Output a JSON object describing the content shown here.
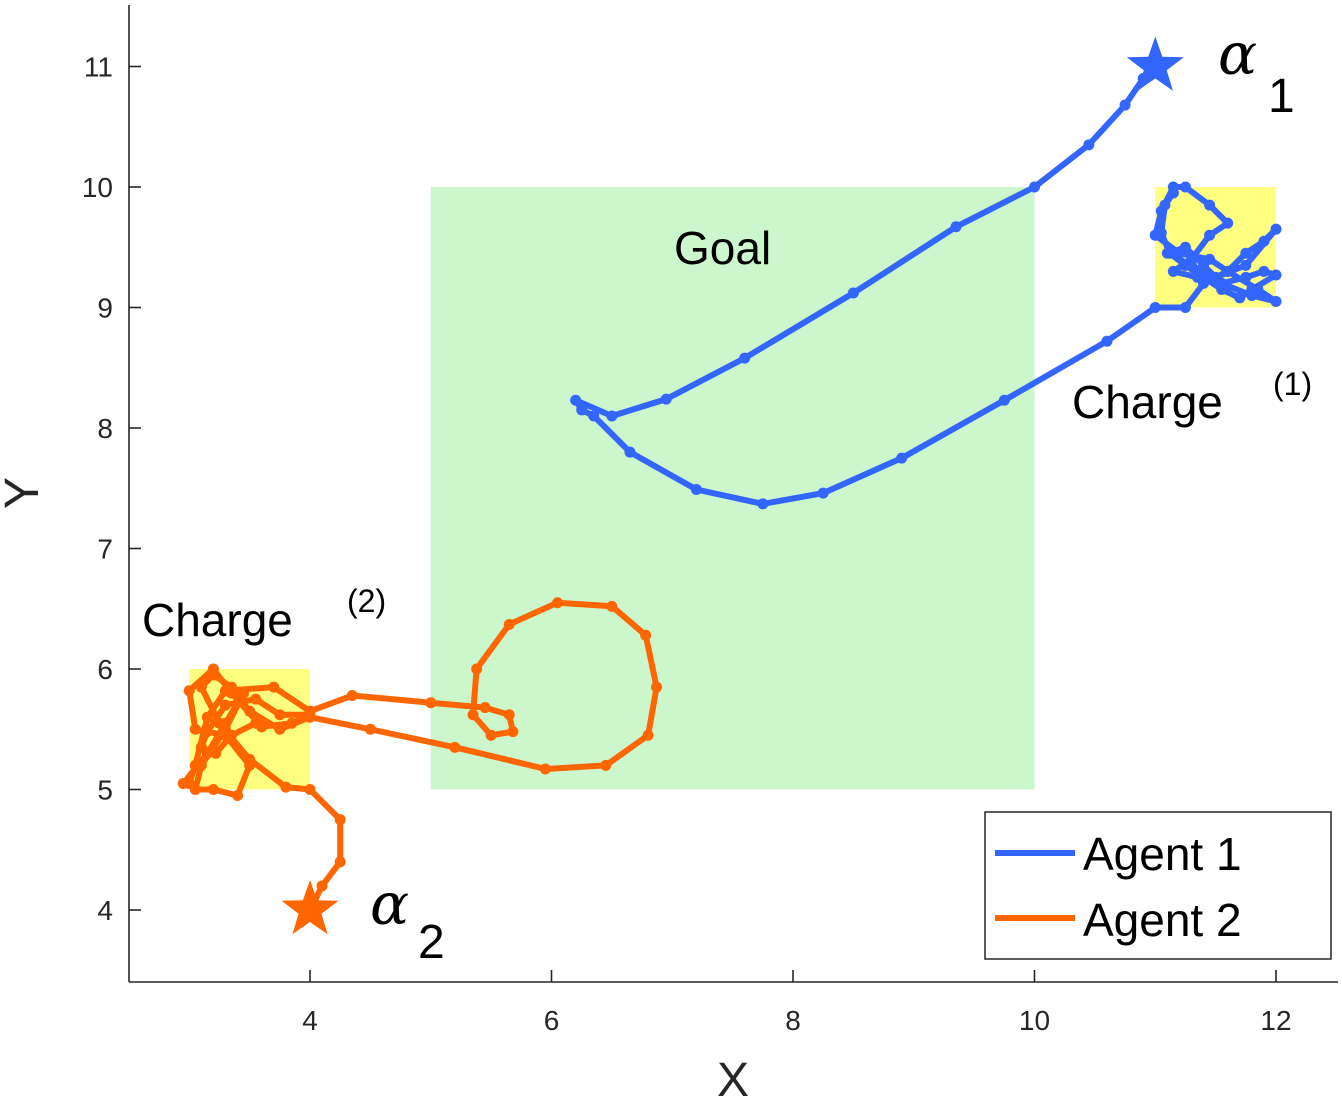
{
  "chart_data": {
    "type": "line",
    "xlabel": "X",
    "ylabel": "Y",
    "xlim": [
      2.5,
      12.7
    ],
    "ylim": [
      3.4,
      11.5
    ],
    "xticks": [
      "4",
      "6",
      "8",
      "10",
      "12"
    ],
    "yticks": [
      "4",
      "5",
      "6",
      "7",
      "8",
      "9",
      "10",
      "11"
    ],
    "grid": false,
    "legend_position": "bottom-right",
    "regions": [
      {
        "name": "goal",
        "label": "Goal",
        "sup": "",
        "x": [
          5,
          10
        ],
        "y": [
          5,
          10
        ],
        "color": "#ccf7cc"
      },
      {
        "name": "charge-1",
        "label": "Charge",
        "sup": "(1)",
        "x": [
          11,
          12
        ],
        "y": [
          9,
          10
        ],
        "color": "#ffff80"
      },
      {
        "name": "charge-2",
        "label": "Charge",
        "sup": "(2)",
        "x": [
          3,
          4
        ],
        "y": [
          5,
          6
        ],
        "color": "#ffff80"
      }
    ],
    "series": [
      {
        "name": "Agent 1",
        "color": "#3366ff",
        "start": {
          "x": 11.0,
          "y": 11.0,
          "symbol": "α",
          "sub": "1"
        },
        "points": [
          [
            11.0,
            11.0
          ],
          [
            10.9,
            10.9
          ],
          [
            10.75,
            10.68
          ],
          [
            10.45,
            10.35
          ],
          [
            10.0,
            10.0
          ],
          [
            9.35,
            9.67
          ],
          [
            8.5,
            9.12
          ],
          [
            7.6,
            8.58
          ],
          [
            6.95,
            8.24
          ],
          [
            6.5,
            8.1
          ],
          [
            6.2,
            8.23
          ],
          [
            6.25,
            8.15
          ],
          [
            6.35,
            8.1
          ],
          [
            6.65,
            7.8
          ],
          [
            7.2,
            7.49
          ],
          [
            7.75,
            7.37
          ],
          [
            8.25,
            7.46
          ],
          [
            8.9,
            7.75
          ],
          [
            9.75,
            8.23
          ],
          [
            10.6,
            8.72
          ],
          [
            11.0,
            9.0
          ],
          [
            11.25,
            9.0
          ],
          [
            11.4,
            9.2
          ],
          [
            11.6,
            9.3
          ],
          [
            11.75,
            9.45
          ],
          [
            11.9,
            9.55
          ],
          [
            12.0,
            9.65
          ],
          [
            11.75,
            9.35
          ],
          [
            11.5,
            9.25
          ],
          [
            11.3,
            9.35
          ],
          [
            11.1,
            9.45
          ],
          [
            11.25,
            9.5
          ],
          [
            11.4,
            9.35
          ],
          [
            11.55,
            9.2
          ],
          [
            11.8,
            9.1
          ],
          [
            12.0,
            9.05
          ],
          [
            11.85,
            9.15
          ],
          [
            11.6,
            9.3
          ],
          [
            11.45,
            9.4
          ],
          [
            11.2,
            9.45
          ],
          [
            11.0,
            9.6
          ],
          [
            11.05,
            9.8
          ],
          [
            11.15,
            10.0
          ],
          [
            11.25,
            10.0
          ],
          [
            11.45,
            9.85
          ],
          [
            11.6,
            9.7
          ],
          [
            11.45,
            9.6
          ],
          [
            11.3,
            9.4
          ],
          [
            11.15,
            9.3
          ],
          [
            11.35,
            9.25
          ],
          [
            11.55,
            9.2
          ],
          [
            11.75,
            9.25
          ],
          [
            11.9,
            9.3
          ],
          [
            12.0,
            9.27
          ],
          [
            11.8,
            9.15
          ],
          [
            11.7,
            9.08
          ],
          [
            11.55,
            9.15
          ],
          [
            11.4,
            9.25
          ],
          [
            11.25,
            9.35
          ],
          [
            11.12,
            9.45
          ],
          [
            11.05,
            9.62
          ],
          [
            11.08,
            9.85
          ],
          [
            11.15,
            9.95
          ]
        ]
      },
      {
        "name": "Agent 2",
        "color": "#ff6600",
        "start": {
          "x": 4.0,
          "y": 4.0,
          "symbol": "α",
          "sub": "2"
        },
        "points": [
          [
            4.0,
            4.0
          ],
          [
            4.1,
            4.2
          ],
          [
            4.25,
            4.4
          ],
          [
            4.25,
            4.75
          ],
          [
            4.0,
            5.0
          ],
          [
            3.8,
            5.02
          ],
          [
            3.5,
            5.25
          ],
          [
            3.25,
            5.55
          ],
          [
            3.1,
            5.85
          ],
          [
            3.2,
            5.95
          ],
          [
            3.35,
            5.85
          ],
          [
            3.5,
            5.65
          ],
          [
            3.75,
            5.5
          ],
          [
            4.0,
            5.6
          ],
          [
            4.5,
            5.5
          ],
          [
            5.2,
            5.35
          ],
          [
            5.95,
            5.17
          ],
          [
            6.45,
            5.2
          ],
          [
            6.8,
            5.45
          ],
          [
            6.87,
            5.85
          ],
          [
            6.78,
            6.28
          ],
          [
            6.5,
            6.52
          ],
          [
            6.05,
            6.55
          ],
          [
            5.65,
            6.37
          ],
          [
            5.38,
            6.0
          ],
          [
            5.35,
            5.62
          ],
          [
            5.5,
            5.45
          ],
          [
            5.68,
            5.48
          ],
          [
            5.65,
            5.62
          ],
          [
            5.45,
            5.68
          ],
          [
            5.0,
            5.72
          ],
          [
            4.35,
            5.78
          ],
          [
            4.0,
            5.65
          ],
          [
            3.7,
            5.85
          ],
          [
            3.3,
            5.82
          ],
          [
            3.15,
            5.6
          ],
          [
            3.05,
            5.2
          ],
          [
            3.0,
            5.05
          ],
          [
            2.95,
            5.05
          ],
          [
            3.15,
            5.3
          ],
          [
            3.3,
            5.55
          ],
          [
            3.45,
            5.8
          ],
          [
            3.3,
            5.5
          ],
          [
            3.1,
            5.2
          ],
          [
            3.05,
            5.0
          ],
          [
            3.2,
            5.0
          ],
          [
            3.4,
            4.95
          ],
          [
            3.5,
            5.2
          ],
          [
            3.3,
            5.45
          ],
          [
            3.05,
            5.5
          ],
          [
            3.0,
            5.82
          ],
          [
            3.2,
            6.0
          ],
          [
            3.35,
            5.8
          ],
          [
            3.6,
            5.52
          ],
          [
            3.85,
            5.55
          ],
          [
            4.0,
            5.62
          ],
          [
            3.75,
            5.62
          ],
          [
            3.55,
            5.75
          ],
          [
            3.3,
            5.7
          ],
          [
            3.15,
            5.48
          ],
          [
            3.1,
            5.35
          ],
          [
            3.22,
            5.3
          ],
          [
            3.35,
            5.45
          ],
          [
            3.55,
            5.55
          ]
        ]
      }
    ]
  }
}
